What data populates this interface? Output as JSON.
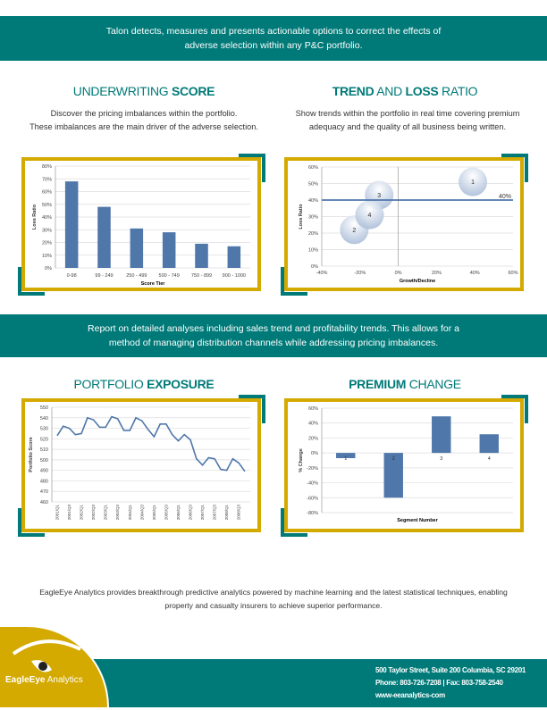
{
  "banner_top": {
    "line1": "Talon detects, measures and presents actionable options to correct the effects of",
    "line2": "adverse selection within any P&C portfolio."
  },
  "section_underwriting": {
    "title_light": "UNDERWRITING ",
    "title_bold": "SCORE",
    "desc1": "Discover the pricing imbalances within the portfolio.",
    "desc2": "These imbalances are the main driver of the adverse selection."
  },
  "section_trend": {
    "title_bold1": "TREND",
    "title_light1": " AND ",
    "title_bold2": "LOSS",
    "title_light2": " RATIO",
    "desc1": "Show trends within the portfolio in real time covering premium",
    "desc2": "adequacy and the quality of all business being written."
  },
  "banner_mid": {
    "line1": "Report on detailed analyses including sales trend and profitability trends. This allows for a",
    "line2": "method of managing distribution channels while addressing pricing imbalances."
  },
  "section_exposure": {
    "title_light": "PORTFOLIO ",
    "title_bold": "EXPOSURE"
  },
  "section_premium": {
    "title_bold": "PREMIUM",
    "title_light": " CHANGE"
  },
  "footer": {
    "text1": "EagleEye Analytics provides breakthrough predictive analytics powered by machine learning and the latest statistical techniques, enabling",
    "text2": "property and casualty insurers to achieve superior performance.",
    "address": "500 Taylor Street, Suite 200 Columbia, SC 29201",
    "phone": "Phone: 803-726-7208 | Fax: 803-758-2540",
    "web": "www-eeanalytics-com",
    "logo_bold": "EagleEye",
    "logo_light": " Analytics"
  },
  "colors": {
    "teal": "#007a78",
    "gold": "#d4a900",
    "bar": "#4f77aa"
  },
  "chart_data": [
    {
      "type": "bar",
      "id": "underwriting",
      "categories": [
        "0-98",
        "99 - 249",
        "250 - 499",
        "500 - 749",
        "750 - 899",
        "900 - 1000"
      ],
      "values": [
        0.68,
        0.48,
        0.31,
        0.28,
        0.19,
        0.17
      ],
      "xlabel": "Score Tier",
      "ylabel": "Loss Ratio",
      "ylim": [
        0,
        0.8
      ],
      "yticks": [
        "0%",
        "10%",
        "20%",
        "30%",
        "40%",
        "50%",
        "60%",
        "70%",
        "80%"
      ]
    },
    {
      "type": "scatter",
      "id": "trend",
      "points": [
        {
          "label": "1",
          "x": 0.39,
          "y": 0.51
        },
        {
          "label": "2",
          "x": -0.23,
          "y": 0.22
        },
        {
          "label": "3",
          "x": -0.1,
          "y": 0.43
        },
        {
          "label": "4",
          "x": -0.15,
          "y": 0.31
        }
      ],
      "reference_line": {
        "y": 0.4,
        "label": "40%"
      },
      "xlabel": "Growth/Decline",
      "ylabel": "Loss Ratio",
      "xlim": [
        -0.4,
        0.6
      ],
      "ylim": [
        0,
        0.6
      ],
      "xticks": [
        "-40%",
        "-20%",
        "0%",
        "20%",
        "40%",
        "60%"
      ],
      "yticks": [
        "0%",
        "10%",
        "20%",
        "30%",
        "40%",
        "50%",
        "60%"
      ]
    },
    {
      "type": "line",
      "id": "exposure",
      "values": [
        523,
        532,
        530,
        524,
        525,
        540,
        538,
        531,
        531,
        541,
        539,
        528,
        528,
        540,
        537,
        529,
        522,
        534,
        534,
        524,
        518,
        524,
        519,
        501,
        495,
        502,
        501,
        491,
        490,
        501,
        497,
        489
      ],
      "xticks": [
        "2001/Q1",
        "2001/Q3",
        "2002/Q1",
        "2002/Q3",
        "2003/Q1",
        "2003/Q3",
        "2004/Q1",
        "2004/Q3",
        "2005/Q1",
        "2005/Q3",
        "2006/Q1",
        "2006/Q3",
        "2007/Q1",
        "2007/Q3",
        "2008/Q1",
        "2008/Q3"
      ],
      "ylabel": "Portfolio Score",
      "ylim": [
        460,
        550
      ],
      "yticks": [
        "460",
        "470",
        "480",
        "490",
        "500",
        "510",
        "520",
        "530",
        "540",
        "550"
      ]
    },
    {
      "type": "bar",
      "id": "premium",
      "categories": [
        "1",
        "2",
        "3",
        "4"
      ],
      "values": [
        -0.07,
        -0.6,
        0.49,
        0.25
      ],
      "xlabel": "Segment Number",
      "ylabel": "% Change",
      "ylim": [
        -0.8,
        0.6
      ],
      "yticks": [
        "-80%",
        "-60%",
        "-40%",
        "-20%",
        "0%",
        "20%",
        "40%",
        "60%"
      ]
    }
  ]
}
